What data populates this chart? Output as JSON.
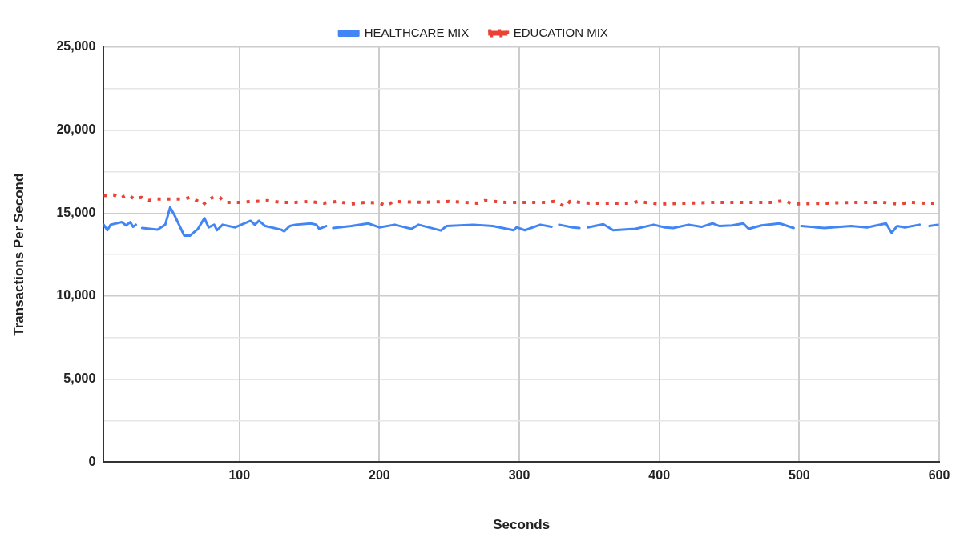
{
  "chart_data": {
    "type": "line",
    "xlabel": "Seconds",
    "ylabel": "Transactions Per Second",
    "xlim": [
      3,
      600
    ],
    "xticks": [
      100,
      200,
      300,
      400,
      500,
      600
    ],
    "ylim": [
      0,
      25000
    ],
    "yticks": [
      0,
      {
        "value": 2500,
        "label": null
      },
      {
        "value": 5000,
        "label": "5,000"
      },
      {
        "value": 7500,
        "label": null
      },
      {
        "value": 10000,
        "label": "10,000"
      },
      {
        "value": 12500,
        "label": null
      },
      {
        "value": 15000,
        "label": "15,000"
      },
      {
        "value": 17500,
        "label": null
      },
      {
        "value": 20000,
        "label": "20,000"
      },
      {
        "value": 22500,
        "label": null
      },
      {
        "value": 25000,
        "label": "25,000"
      }
    ],
    "grid": true,
    "legend": "top",
    "marker": "none",
    "series": [
      {
        "name": "HEALTHCARE MIX",
        "color": "#4285f4",
        "line_style": "solid",
        "x": [
          3,
          5.6,
          8,
          16,
          19,
          22,
          24,
          26,
          28,
          30.5,
          41.5,
          47,
          50.5,
          53.7,
          60.6,
          64.6,
          70.4,
          75,
          78,
          82,
          84,
          88,
          97,
          108,
          111,
          114,
          118.5,
          130,
          132,
          136,
          140,
          151,
          155,
          157,
          162,
          164,
          167,
          180,
          192,
          200,
          211,
          223,
          228,
          244,
          248,
          267,
          281,
          296,
          298,
          304,
          315,
          323,
          326,
          328.5,
          338,
          343,
          346,
          349,
          360,
          367,
          383,
          396,
          404,
          410,
          421,
          430,
          438,
          443,
          452,
          460,
          464,
          473,
          486,
          496,
          498,
          501.5,
          518,
          537,
          548.5,
          562,
          566,
          570,
          575.5,
          586,
          589,
          593,
          599
        ],
        "values": [
          14300,
          13970,
          14300,
          14460,
          14260,
          14460,
          14170,
          14300,
          null,
          14100,
          14000,
          14300,
          15340,
          14860,
          13640,
          13640,
          14050,
          14700,
          14140,
          14300,
          13970,
          14300,
          14140,
          14540,
          14300,
          14540,
          14220,
          14000,
          13900,
          14220,
          14300,
          14380,
          14300,
          14050,
          14220,
          null,
          14100,
          14220,
          14380,
          14140,
          14300,
          14050,
          14300,
          13950,
          14220,
          14300,
          14220,
          13970,
          14140,
          13970,
          14300,
          14170,
          null,
          14300,
          14140,
          14100,
          null,
          14140,
          14330,
          13970,
          14050,
          14300,
          14140,
          14100,
          14300,
          14170,
          14380,
          14220,
          14260,
          14380,
          14050,
          14260,
          14380,
          14100,
          null,
          14220,
          14100,
          14220,
          14140,
          14380,
          13810,
          14220,
          14140,
          14300,
          null,
          14220,
          14300
        ]
      },
      {
        "name": "EDUCATION MIX",
        "color": "#ea4335",
        "line_style": "dotted",
        "x": [
          3,
          10,
          15,
          20,
          25,
          30,
          35,
          40,
          50,
          60,
          65,
          72,
          74,
          78,
          82,
          86,
          90,
          100,
          110,
          120,
          130,
          140,
          150,
          160,
          170,
          180,
          190,
          200,
          205,
          210,
          230,
          250,
          270,
          275,
          290,
          300,
          320,
          325,
          330,
          333,
          336,
          350,
          380,
          385,
          400,
          420,
          440,
          480,
          490,
          495,
          520,
          540,
          560,
          570,
          580,
          590,
          600
        ],
        "values": [
          16050,
          16100,
          15900,
          16100,
          15850,
          15950,
          15750,
          15850,
          15850,
          15850,
          15950,
          15650,
          15500,
          15800,
          16000,
          15950,
          15650,
          15650,
          15700,
          15750,
          15650,
          15650,
          15700,
          15600,
          15700,
          15550,
          15650,
          15600,
          15450,
          15700,
          15650,
          15700,
          15600,
          15750,
          15650,
          15650,
          15650,
          15700,
          15500,
          15400,
          15700,
          15600,
          15600,
          15700,
          15550,
          15600,
          15650,
          15650,
          15750,
          15550,
          15600,
          15650,
          15650,
          15550,
          15650,
          15600,
          15600
        ]
      }
    ]
  }
}
